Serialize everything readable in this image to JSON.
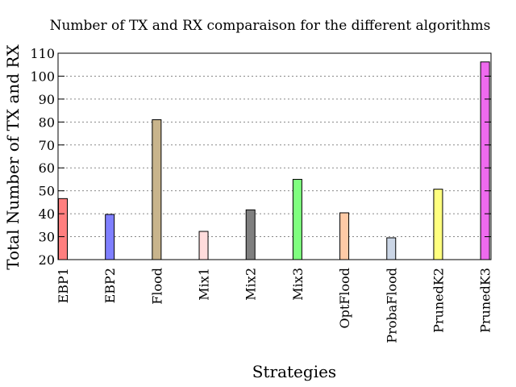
{
  "chart_data": {
    "type": "bar",
    "title": "Number of TX and RX comparaison for the different algorithms",
    "xlabel": "Strategies",
    "ylabel": "Total Number of TX and RX",
    "ylim": [
      20,
      110
    ],
    "yticks": [
      20,
      30,
      40,
      50,
      60,
      70,
      80,
      90,
      100,
      110
    ],
    "grid": true,
    "categories": [
      "EBP1",
      "EBP2",
      "Flood",
      "Mix1",
      "Mix2",
      "Mix3",
      "OptFlood",
      "ProbaFlood",
      "PrunedK2",
      "PrunedK3"
    ],
    "values": [
      46.6,
      39.7,
      81,
      32.3,
      41.7,
      55,
      40.4,
      29.5,
      50.7,
      106.2
    ],
    "colors": [
      "#ff7f7f",
      "#7f7fff",
      "#c8b48c",
      "#ffdcdc",
      "#7f7f7f",
      "#7fff7f",
      "#ffcaa6",
      "#cbd6e6",
      "#ffff7f",
      "#ee6aee"
    ]
  }
}
